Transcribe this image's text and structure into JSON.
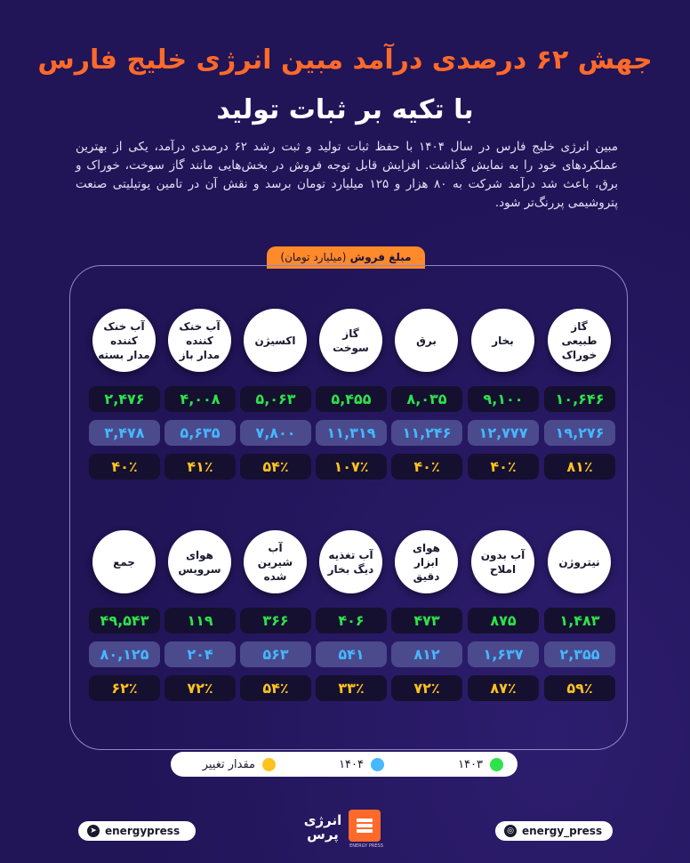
{
  "title_line1": "جهش ۶۲ درصدی درآمد مبین انرژی خلیج فارس",
  "title_line2": "با تکیه بر ثبات تولید",
  "intro": "مبین انرژی خلیج فارس در سال ۱۴۰۴ با حفظ ثبات تولید و ثبت رشد ۶۲ درصدی درآمد، یکی از بهترین عملکردهای خود را به نمایش گذاشت. افزایش قابل توجه فروش در بخش‌هایی مانند گاز سوخت، خوراک و برق، باعث شد درآمد شرکت به ۸۰ هزار و ۱۲۵ میلیارد تومان برسد و نقش آن در تامین یوتیلیتی صنعت پتروشیمی پررنگ‌تر شود.",
  "sales_label": "مبلغ فروش",
  "sales_unit": "(میلیارد تومان)",
  "row1": [
    {
      "name": "گاز طبیعی خوراک",
      "v1403": "۱۰,۶۴۶",
      "v1404": "۱۹,۲۷۶",
      "change": "۸۱٪"
    },
    {
      "name": "بخار",
      "v1403": "۹,۱۰۰",
      "v1404": "۱۲,۷۷۷",
      "change": "۴۰٪"
    },
    {
      "name": "برق",
      "v1403": "۸,۰۳۵",
      "v1404": "۱۱,۲۴۶",
      "change": "۴۰٪"
    },
    {
      "name": "گاز سوخت",
      "v1403": "۵,۴۵۵",
      "v1404": "۱۱,۳۱۹",
      "change": "۱۰۷٪"
    },
    {
      "name": "اکسیژن",
      "v1403": "۵,۰۶۳",
      "v1404": "۷,۸۰۰",
      "change": "۵۴٪"
    },
    {
      "name": "آب خنک کننده مدار باز",
      "v1403": "۴,۰۰۸",
      "v1404": "۵,۶۳۵",
      "change": "۴۱٪"
    },
    {
      "name": "آب خنک کننده مدار بسته",
      "v1403": "۲,۴۷۶",
      "v1404": "۳,۴۷۸",
      "change": "۴۰٪"
    }
  ],
  "row2": [
    {
      "name": "نیتروژن",
      "v1403": "۱,۴۸۳",
      "v1404": "۲,۳۵۵",
      "change": "۵۹٪"
    },
    {
      "name": "آب بدون املاح",
      "v1403": "۸۷۵",
      "v1404": "۱,۶۳۷",
      "change": "۸۷٪"
    },
    {
      "name": "هوای ابزار دقیق",
      "v1403": "۴۷۳",
      "v1404": "۸۱۲",
      "change": "۷۲٪"
    },
    {
      "name": "آب تغذیه دیگ بخار",
      "v1403": "۴۰۶",
      "v1404": "۵۴۱",
      "change": "۳۳٪"
    },
    {
      "name": "آب شیرین شده",
      "v1403": "۳۶۶",
      "v1404": "۵۶۳",
      "change": "۵۴٪"
    },
    {
      "name": "هوای سرویس",
      "v1403": "۱۱۹",
      "v1404": "۲۰۴",
      "change": "۷۲٪"
    },
    {
      "name": "جمع",
      "v1403": "۴۹,۵۴۳",
      "v1404": "۸۰,۱۲۵",
      "change": "۶۲٪"
    }
  ],
  "legend": {
    "y1403": "۱۴۰۳",
    "y1404": "۱۴۰۴",
    "change": "مقدار تغییر"
  },
  "colors": {
    "v1403": "#2de34a",
    "v1404": "#45b8ff",
    "change": "#ffc21f",
    "accent": "#ff6a2a"
  },
  "footer": {
    "handle_left": "energypress",
    "handle_right": "energy_press",
    "logo_text": "انرژی پرس",
    "logo_sub": "ENERGY PRESS",
    "icon_left": "telegram-icon",
    "icon_right": "instagram-icon"
  }
}
